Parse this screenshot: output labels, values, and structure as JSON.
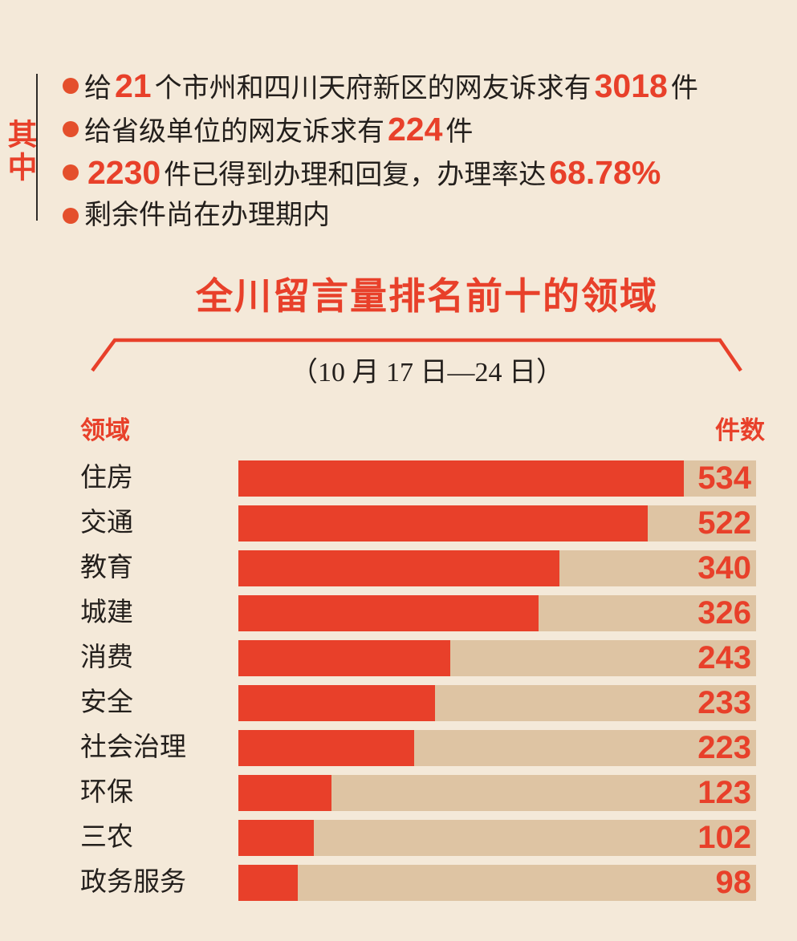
{
  "colors": {
    "background": "#f4e9d9",
    "accent_red": "#e8402a",
    "bullet_dot_red": "#e44f2c",
    "bar_red": "#e8402a",
    "bar_track_tan": "#dec4a3",
    "text_black": "#231f1c",
    "divider_dark": "#2e2b28"
  },
  "summary": {
    "side_label": "其中",
    "bullets": [
      {
        "segments": [
          {
            "text": "给",
            "red": false
          },
          {
            "text": "21",
            "red": true
          },
          {
            "text": "个市州和四川天府新区的网友诉求有",
            "red": false
          },
          {
            "text": "3018",
            "red": true
          },
          {
            "text": "件",
            "red": false
          }
        ]
      },
      {
        "segments": [
          {
            "text": "给省级单位的网友诉求有",
            "red": false
          },
          {
            "text": "224",
            "red": true
          },
          {
            "text": "件",
            "red": false
          }
        ]
      },
      {
        "segments": [
          {
            "text": "2230",
            "red": true
          },
          {
            "text": "件已得到办理和回复，办理率达",
            "red": false
          },
          {
            "text": "68.78%",
            "red": true
          }
        ]
      },
      {
        "segments": [
          {
            "text": "剩余件尚在办理期内",
            "red": false
          }
        ]
      }
    ]
  },
  "chart_data": {
    "type": "bar",
    "orientation": "horizontal",
    "title": "全川留言量排名前十的领域",
    "subtitle": "（10 月 17 日—24 日）",
    "column_headers": {
      "category": "领域",
      "value": "件数"
    },
    "categories": [
      "住房",
      "交通",
      "教育",
      "城建",
      "消费",
      "安全",
      "社会治理",
      "环保",
      "三农",
      "政务服务"
    ],
    "values": [
      534,
      522,
      340,
      326,
      243,
      233,
      223,
      123,
      102,
      98
    ],
    "bar_fill_pct": [
      86,
      79,
      62,
      58,
      41,
      38,
      34,
      18,
      14.5,
      11.5
    ],
    "value_labels_inside_track": true,
    "legend": false,
    "grid": false
  }
}
